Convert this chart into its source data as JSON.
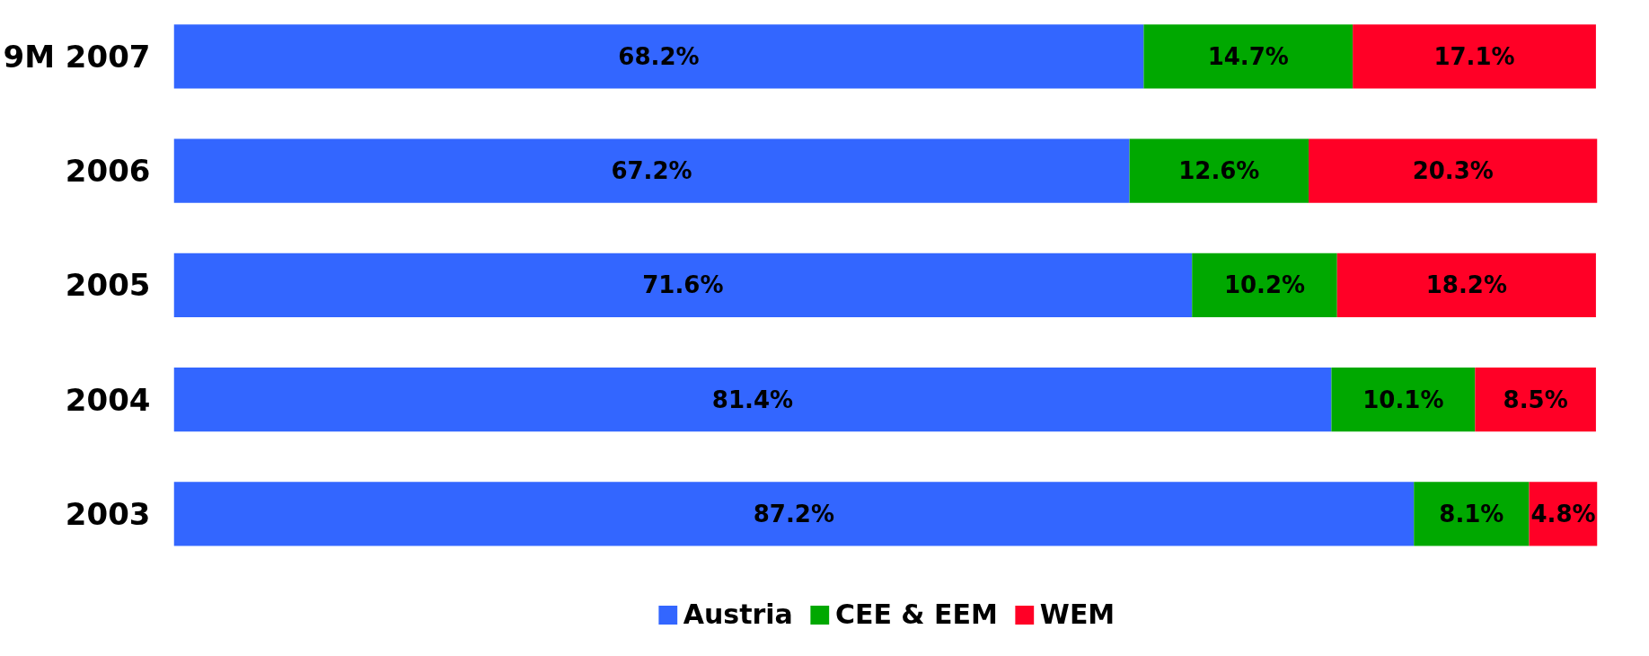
{
  "chart_data": {
    "type": "bar",
    "orientation": "horizontal",
    "stacked": true,
    "categories": [
      "9M 2007",
      "2006",
      "2005",
      "2004",
      "2003"
    ],
    "xlim": [
      0,
      100.1
    ],
    "tick_labels": "y",
    "grid": false,
    "legend": "bottom",
    "series": [
      {
        "name": "Austria",
        "color": "#3366ff",
        "values": [
          68.2,
          67.2,
          71.6,
          81.4,
          87.2
        ],
        "value_labels": [
          "68.2%",
          "67.2%",
          "71.6%",
          "81.4%",
          "87.2%"
        ]
      },
      {
        "name": "CEE & EEM",
        "color": "#00a800",
        "values": [
          14.7,
          12.6,
          10.2,
          10.1,
          8.1
        ],
        "value_labels": [
          "14.7%",
          "12.6%",
          "10.2%",
          "10.1%",
          "8.1%"
        ]
      },
      {
        "name": "WEM",
        "color": "#ff0026",
        "values": [
          17.1,
          20.3,
          18.2,
          8.5,
          4.8
        ],
        "value_labels": [
          "17.1%",
          "20.3%",
          "18.2%",
          "8.5%",
          "4.8%"
        ]
      }
    ]
  }
}
